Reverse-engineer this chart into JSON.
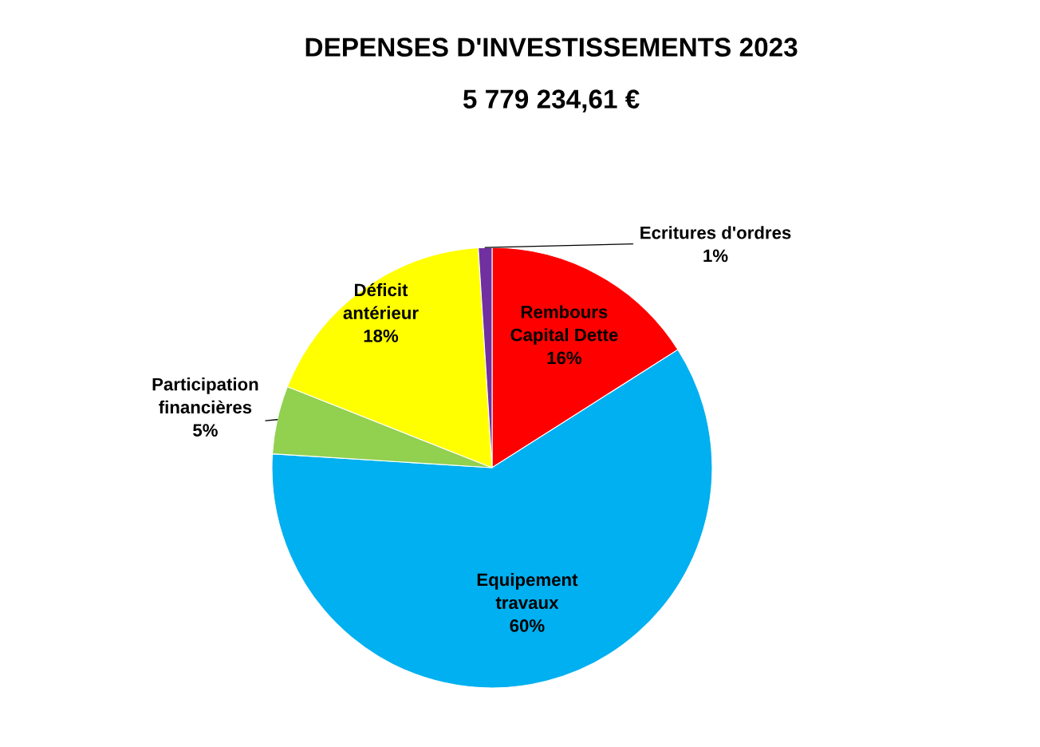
{
  "chart_data": {
    "type": "pie",
    "title": "DEPENSES D'INVESTISSEMENTS 2023",
    "subtitle": "5 779 234,61 €",
    "categories": [
      "Rembours\nCapital Dette",
      "Equipement\ntravaux",
      "Participation\nfinancières",
      "Déficit\nantérieur",
      "Ecritures d'ordres"
    ],
    "values": [
      16,
      60,
      5,
      18,
      1
    ],
    "colors": [
      "#ff0000",
      "#00b0f0",
      "#92d050",
      "#ffff00",
      "#7030a0"
    ],
    "value_labels": [
      "16%",
      "60%",
      "5%",
      "18%",
      "1%"
    ],
    "legend": false
  }
}
